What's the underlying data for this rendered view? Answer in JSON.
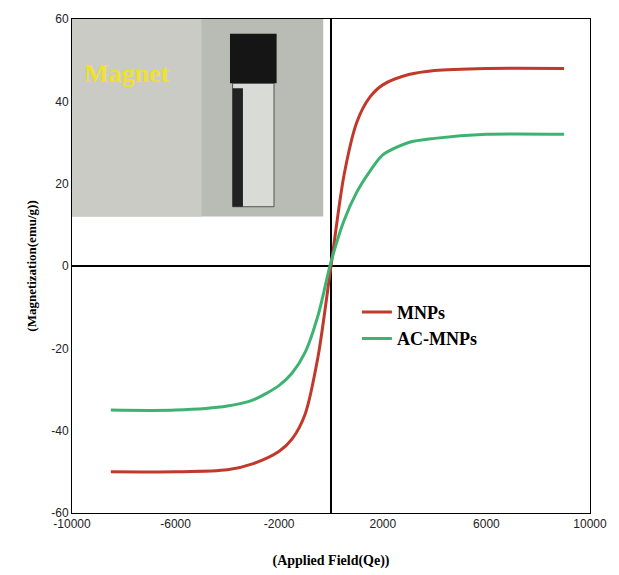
{
  "chart_data": {
    "type": "line",
    "x_label": "(Applied Field(Qe))",
    "y_label": "(Magnetization(emu/g))",
    "annotations": [
      "Magnet"
    ],
    "xlim": [
      -10000,
      10000
    ],
    "xticks": [
      -10000,
      -6000,
      -2000,
      2000,
      6000,
      10000
    ],
    "ylim": [
      -60,
      60
    ],
    "yticks": [
      -60,
      -40,
      -20,
      0,
      20,
      40,
      60
    ],
    "grid": false,
    "legend": "right",
    "series": [
      {
        "name": "MNPs",
        "color": "#c0392b",
        "x": [
          -8500,
          -6000,
          -4000,
          -3000,
          -2000,
          -1500,
          -1000,
          -500,
          0,
          500,
          1000,
          1500,
          2000,
          3000,
          4000,
          6000,
          9000
        ],
        "values": [
          -50,
          -50,
          -49.5,
          -48,
          -45,
          -42,
          -36,
          -22,
          0,
          22,
          35,
          41,
          44,
          46.5,
          47.5,
          48,
          48
        ]
      },
      {
        "name": "AC-MNPs",
        "color": "#3cb371",
        "x": [
          -8500,
          -6000,
          -4000,
          -3000,
          -2000,
          -1500,
          -1000,
          -500,
          0,
          500,
          1000,
          1500,
          2000,
          3000,
          4000,
          6000,
          9000
        ],
        "values": [
          -35,
          -35,
          -34,
          -32.5,
          -29,
          -26,
          -21,
          -12,
          1,
          11,
          18,
          23,
          27,
          30,
          31,
          32,
          32
        ]
      }
    ]
  }
}
